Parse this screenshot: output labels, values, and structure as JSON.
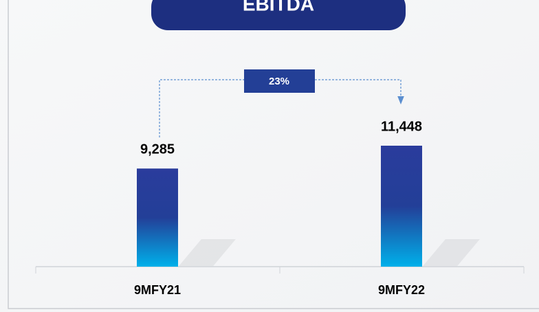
{
  "chart_data": {
    "type": "bar",
    "title": "EBITDA",
    "categories": [
      "9MFY21",
      "9MFY22"
    ],
    "values": [
      9285,
      11448
    ],
    "value_labels": [
      "9,285",
      "11,448"
    ],
    "annotation": "23%"
  }
}
